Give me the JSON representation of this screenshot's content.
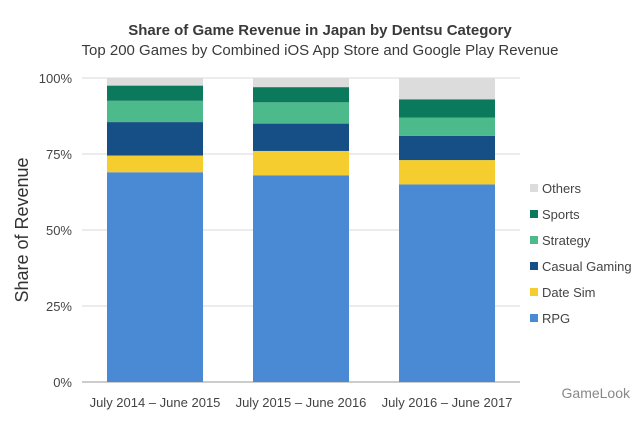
{
  "chart_data": {
    "type": "bar",
    "stacked": true,
    "title": "Share of Game Revenue in Japan by Dentsu Category",
    "subtitle": "Top 200 Games by Combined iOS App Store and Google Play Revenue",
    "ylabel": "Share of Revenue",
    "xlabel": "",
    "ylim": [
      0,
      100
    ],
    "yticks": [
      "0%",
      "25%",
      "50%",
      "75%",
      "100%"
    ],
    "ytick_values": [
      0,
      25,
      50,
      75,
      100
    ],
    "categories": [
      "July 2014 – June 2015",
      "July 2015 – June 2016",
      "July 2016 – June 2017"
    ],
    "legend_position": "right",
    "series": [
      {
        "name": "RPG",
        "color": "#4a8ad4",
        "values": [
          69,
          68,
          65
        ]
      },
      {
        "name": "Date Sim",
        "color": "#f5cd2e",
        "values": [
          5.5,
          8,
          8
        ]
      },
      {
        "name": "Casual Gaming",
        "color": "#154f86",
        "values": [
          11,
          9,
          8
        ]
      },
      {
        "name": "Strategy",
        "color": "#4cba8a",
        "values": [
          7,
          7,
          6
        ]
      },
      {
        "name": "Sports",
        "color": "#0b7a5c",
        "values": [
          5,
          5,
          6
        ]
      },
      {
        "name": "Others",
        "color": "#dcdcdc",
        "values": [
          2.5,
          3,
          7
        ]
      }
    ]
  },
  "watermark_text": "GameLook"
}
